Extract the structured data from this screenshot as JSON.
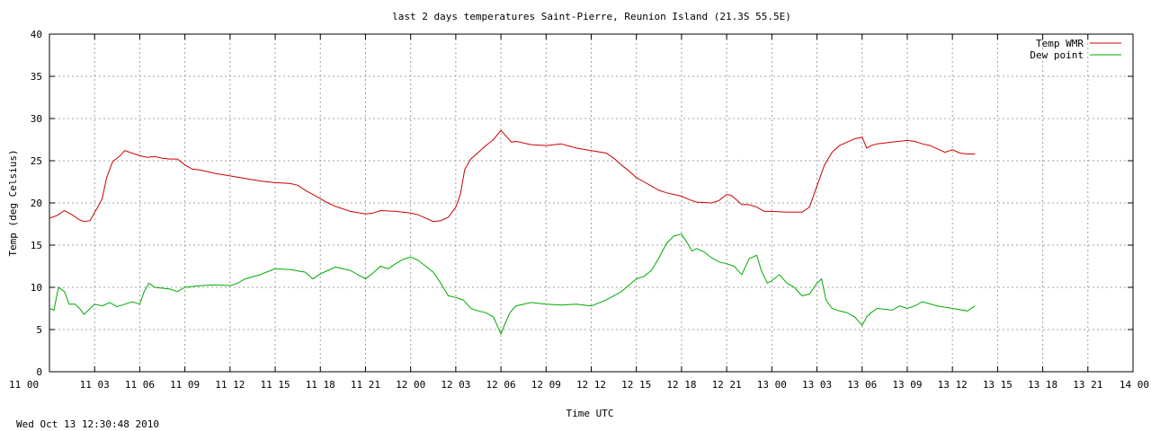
{
  "chart_data": {
    "type": "line",
    "title": "last 2 days temperatures Saint-Pierre, Reunion Island (21.3S 55.5E)",
    "xlabel": "Time UTC",
    "ylabel": "Temp (deg Celsius)",
    "footer": "Wed Oct 13 12:30:48 2010",
    "grid": true,
    "legend_position": "top-right",
    "xlim": [
      0,
      72
    ],
    "ylim": [
      0,
      40
    ],
    "x_ticks": [
      {
        "x": 0,
        "label": "11 00"
      },
      {
        "x": 3,
        "label": "11 03"
      },
      {
        "x": 6,
        "label": "11 06"
      },
      {
        "x": 9,
        "label": "11 09"
      },
      {
        "x": 12,
        "label": "11 12"
      },
      {
        "x": 15,
        "label": "11 15"
      },
      {
        "x": 18,
        "label": "11 18"
      },
      {
        "x": 21,
        "label": "11 21"
      },
      {
        "x": 24,
        "label": "12 00"
      },
      {
        "x": 27,
        "label": "12 03"
      },
      {
        "x": 30,
        "label": "12 06"
      },
      {
        "x": 33,
        "label": "12 09"
      },
      {
        "x": 36,
        "label": "12 12"
      },
      {
        "x": 39,
        "label": "12 15"
      },
      {
        "x": 42,
        "label": "12 18"
      },
      {
        "x": 45,
        "label": "12 21"
      },
      {
        "x": 48,
        "label": "13 00"
      },
      {
        "x": 51,
        "label": "13 03"
      },
      {
        "x": 54,
        "label": "13 06"
      },
      {
        "x": 57,
        "label": "13 09"
      },
      {
        "x": 60,
        "label": "13 12"
      },
      {
        "x": 63,
        "label": "13 15"
      },
      {
        "x": 66,
        "label": "13 18"
      },
      {
        "x": 69,
        "label": "13 21"
      },
      {
        "x": 72,
        "label": "14 00"
      }
    ],
    "y_ticks": [
      0,
      5,
      10,
      15,
      20,
      25,
      30,
      35,
      40
    ],
    "series": [
      {
        "name": "Temp WMR",
        "color": "#cc0000",
        "points": [
          [
            0,
            18.2
          ],
          [
            0.5,
            18.5
          ],
          [
            1,
            19.1
          ],
          [
            1.5,
            18.6
          ],
          [
            2,
            18.0
          ],
          [
            2.3,
            17.8
          ],
          [
            2.7,
            17.9
          ],
          [
            3.2,
            19.5
          ],
          [
            3.5,
            20.5
          ],
          [
            3.8,
            23.0
          ],
          [
            4.2,
            24.9
          ],
          [
            4.7,
            25.6
          ],
          [
            5,
            26.2
          ],
          [
            5.5,
            25.9
          ],
          [
            6,
            25.6
          ],
          [
            6.5,
            25.4
          ],
          [
            7,
            25.5
          ],
          [
            7.5,
            25.3
          ],
          [
            8,
            25.2
          ],
          [
            8.5,
            25.2
          ],
          [
            9,
            24.5
          ],
          [
            9.5,
            24.0
          ],
          [
            10,
            23.9
          ],
          [
            11,
            23.5
          ],
          [
            12,
            23.2
          ],
          [
            13,
            22.9
          ],
          [
            14,
            22.6
          ],
          [
            15,
            22.4
          ],
          [
            16,
            22.3
          ],
          [
            16.5,
            22.1
          ],
          [
            17,
            21.5
          ],
          [
            17.5,
            21.0
          ],
          [
            18,
            20.5
          ],
          [
            18.5,
            20.0
          ],
          [
            19,
            19.6
          ],
          [
            20,
            19.0
          ],
          [
            21,
            18.7
          ],
          [
            21.5,
            18.8
          ],
          [
            22,
            19.1
          ],
          [
            23,
            19.0
          ],
          [
            24,
            18.8
          ],
          [
            24.5,
            18.6
          ],
          [
            25,
            18.2
          ],
          [
            25.5,
            17.8
          ],
          [
            26,
            17.9
          ],
          [
            26.5,
            18.3
          ],
          [
            27,
            19.5
          ],
          [
            27.3,
            21.0
          ],
          [
            27.6,
            24.0
          ],
          [
            28,
            25.2
          ],
          [
            28.5,
            26.0
          ],
          [
            29,
            26.8
          ],
          [
            29.5,
            27.5
          ],
          [
            30,
            28.6
          ],
          [
            30.3,
            28.0
          ],
          [
            30.7,
            27.2
          ],
          [
            31,
            27.3
          ],
          [
            32,
            26.9
          ],
          [
            33,
            26.8
          ],
          [
            34,
            27.0
          ],
          [
            35,
            26.5
          ],
          [
            36,
            26.2
          ],
          [
            37,
            25.9
          ],
          [
            37.5,
            25.3
          ],
          [
            38,
            24.5
          ],
          [
            38.5,
            23.8
          ],
          [
            39,
            23.0
          ],
          [
            39.5,
            22.5
          ],
          [
            40,
            22.0
          ],
          [
            40.5,
            21.5
          ],
          [
            41,
            21.2
          ],
          [
            41.5,
            21.0
          ],
          [
            42,
            20.8
          ],
          [
            42.5,
            20.4
          ],
          [
            43,
            20.1
          ],
          [
            44,
            20.0
          ],
          [
            44.5,
            20.3
          ],
          [
            45,
            21.0
          ],
          [
            45.3,
            20.9
          ],
          [
            45.7,
            20.3
          ],
          [
            46,
            19.8
          ],
          [
            46.5,
            19.8
          ],
          [
            47,
            19.5
          ],
          [
            47.5,
            19.0
          ],
          [
            48,
            19.0
          ],
          [
            49,
            18.9
          ],
          [
            50,
            18.9
          ],
          [
            50.5,
            19.5
          ],
          [
            51,
            22.0
          ],
          [
            51.5,
            24.5
          ],
          [
            52,
            26.0
          ],
          [
            52.5,
            26.8
          ],
          [
            53,
            27.2
          ],
          [
            53.5,
            27.6
          ],
          [
            54,
            27.8
          ],
          [
            54.3,
            26.5
          ],
          [
            54.6,
            26.8
          ],
          [
            55,
            27.0
          ],
          [
            56,
            27.2
          ],
          [
            57,
            27.4
          ],
          [
            57.5,
            27.3
          ],
          [
            58,
            27.0
          ],
          [
            58.5,
            26.8
          ],
          [
            59,
            26.4
          ],
          [
            59.5,
            26.0
          ],
          [
            60,
            26.3
          ],
          [
            60.5,
            25.9
          ],
          [
            61,
            25.8
          ],
          [
            61.5,
            25.8
          ]
        ]
      },
      {
        "name": "Dew point",
        "color": "#00aa00",
        "points": [
          [
            0,
            7.5
          ],
          [
            0.3,
            7.3
          ],
          [
            0.6,
            10.0
          ],
          [
            1,
            9.5
          ],
          [
            1.3,
            8.0
          ],
          [
            1.7,
            8.0
          ],
          [
            2,
            7.5
          ],
          [
            2.3,
            6.8
          ],
          [
            2.7,
            7.5
          ],
          [
            3,
            8.0
          ],
          [
            3.5,
            7.8
          ],
          [
            4,
            8.2
          ],
          [
            4.5,
            7.7
          ],
          [
            5,
            8.0
          ],
          [
            5.5,
            8.3
          ],
          [
            6,
            8.0
          ],
          [
            6.3,
            9.5
          ],
          [
            6.6,
            10.5
          ],
          [
            7,
            10.0
          ],
          [
            8,
            9.8
          ],
          [
            8.5,
            9.5
          ],
          [
            9,
            10.0
          ],
          [
            10,
            10.2
          ],
          [
            11,
            10.3
          ],
          [
            12,
            10.2
          ],
          [
            12.5,
            10.5
          ],
          [
            13,
            11.0
          ],
          [
            14,
            11.5
          ],
          [
            15,
            12.2
          ],
          [
            16,
            12.1
          ],
          [
            17,
            11.8
          ],
          [
            17.5,
            11.0
          ],
          [
            18,
            11.6
          ],
          [
            19,
            12.4
          ],
          [
            20,
            12.0
          ],
          [
            20.5,
            11.5
          ],
          [
            21,
            11.0
          ],
          [
            21.5,
            11.7
          ],
          [
            22,
            12.5
          ],
          [
            22.5,
            12.2
          ],
          [
            23,
            12.8
          ],
          [
            23.5,
            13.3
          ],
          [
            24,
            13.6
          ],
          [
            24.5,
            13.2
          ],
          [
            25,
            12.5
          ],
          [
            25.5,
            11.8
          ],
          [
            26,
            10.5
          ],
          [
            26.5,
            9.0
          ],
          [
            27,
            8.8
          ],
          [
            27.5,
            8.5
          ],
          [
            28,
            7.5
          ],
          [
            28.5,
            7.2
          ],
          [
            29,
            7.0
          ],
          [
            29.5,
            6.5
          ],
          [
            29.8,
            5.3
          ],
          [
            30,
            4.5
          ],
          [
            30.3,
            5.8
          ],
          [
            30.6,
            7.0
          ],
          [
            31,
            7.8
          ],
          [
            32,
            8.2
          ],
          [
            33,
            8.0
          ],
          [
            34,
            7.9
          ],
          [
            35,
            8.0
          ],
          [
            36,
            7.8
          ],
          [
            37,
            8.5
          ],
          [
            38,
            9.5
          ],
          [
            39,
            11.0
          ],
          [
            39.5,
            11.3
          ],
          [
            40,
            12.0
          ],
          [
            40.5,
            13.5
          ],
          [
            41,
            15.2
          ],
          [
            41.5,
            16.1
          ],
          [
            42,
            16.3
          ],
          [
            42.3,
            15.5
          ],
          [
            42.7,
            14.3
          ],
          [
            43,
            14.6
          ],
          [
            43.5,
            14.2
          ],
          [
            44,
            13.5
          ],
          [
            44.5,
            13.0
          ],
          [
            45,
            12.8
          ],
          [
            45.5,
            12.5
          ],
          [
            46,
            11.5
          ],
          [
            46.5,
            13.4
          ],
          [
            47,
            13.8
          ],
          [
            47.3,
            12.0
          ],
          [
            47.7,
            10.5
          ],
          [
            48,
            10.8
          ],
          [
            48.5,
            11.5
          ],
          [
            49,
            10.5
          ],
          [
            49.5,
            10.0
          ],
          [
            50,
            9.0
          ],
          [
            50.5,
            9.2
          ],
          [
            51,
            10.5
          ],
          [
            51.3,
            11.0
          ],
          [
            51.6,
            8.5
          ],
          [
            52,
            7.5
          ],
          [
            52.5,
            7.2
          ],
          [
            53,
            7.0
          ],
          [
            53.5,
            6.5
          ],
          [
            54,
            5.5
          ],
          [
            54.3,
            6.5
          ],
          [
            54.6,
            7.0
          ],
          [
            55,
            7.5
          ],
          [
            56,
            7.3
          ],
          [
            56.5,
            7.8
          ],
          [
            57,
            7.5
          ],
          [
            57.5,
            7.8
          ],
          [
            58,
            8.3
          ],
          [
            59,
            7.8
          ],
          [
            60,
            7.5
          ],
          [
            61,
            7.2
          ],
          [
            61.5,
            7.8
          ]
        ]
      }
    ]
  }
}
